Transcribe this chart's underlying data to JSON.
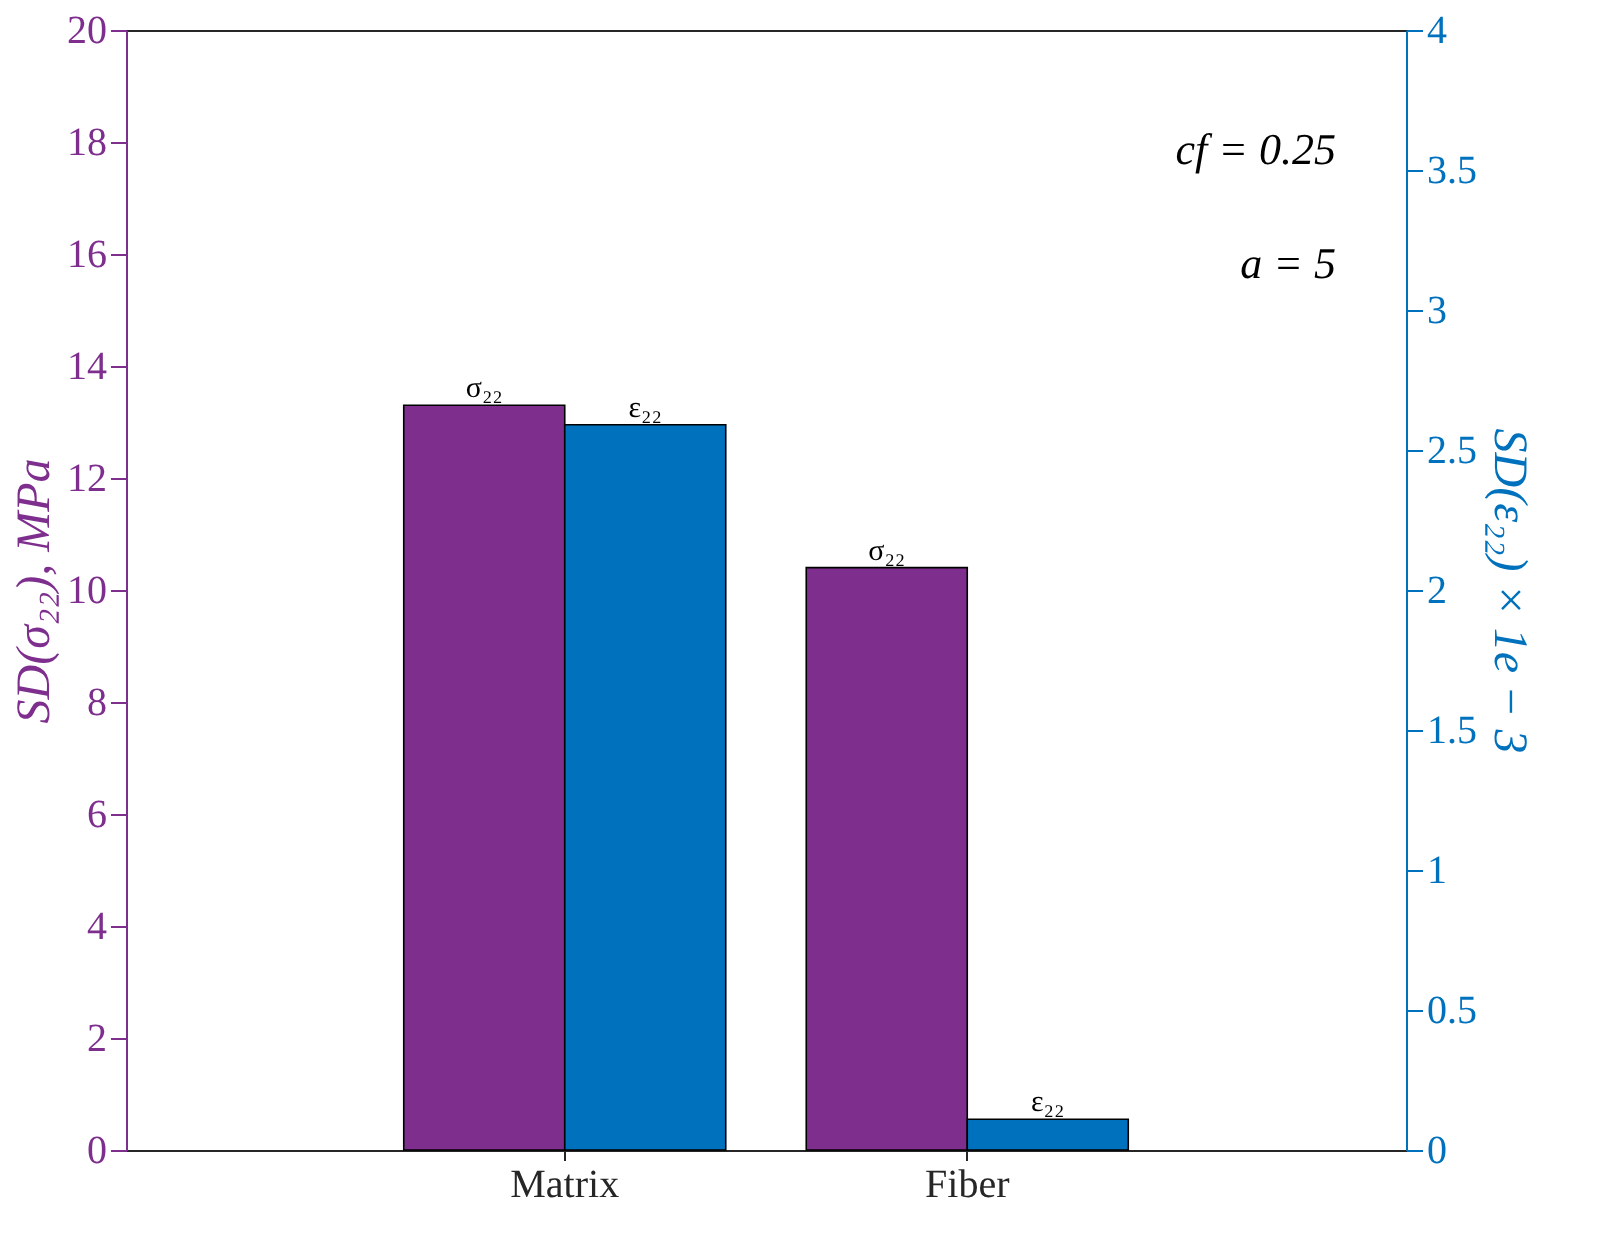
{
  "chart_data": {
    "type": "bar",
    "categories": [
      "Matrix",
      "Fiber"
    ],
    "ylabel": "SD(σ₂₂), MPa",
    "y2label": "SD(ε₂₂) × 1e − 3",
    "ylim": [
      0,
      20
    ],
    "yticks": [
      0,
      2,
      4,
      6,
      8,
      10,
      12,
      14,
      16,
      18,
      20
    ],
    "y2lim": [
      0,
      4
    ],
    "y2ticks": [
      0,
      0.5,
      1,
      1.5,
      2,
      2.5,
      3,
      3.5,
      4
    ],
    "series": [
      {
        "color": "#7e2f8e",
        "values": [
          13.3,
          10.4
        ],
        "value_labels": [
          "σ₂₂",
          "σ₂₂"
        ]
      },
      {
        "color": "#0072bd",
        "values": [
          2.59,
          0.11
        ],
        "value_labels": [
          "ε₂₂",
          "ε₂₂"
        ],
        "axis": "y2"
      }
    ],
    "annotations": [
      "cf = 0.25",
      "a = 5"
    ],
    "grid": false
  }
}
